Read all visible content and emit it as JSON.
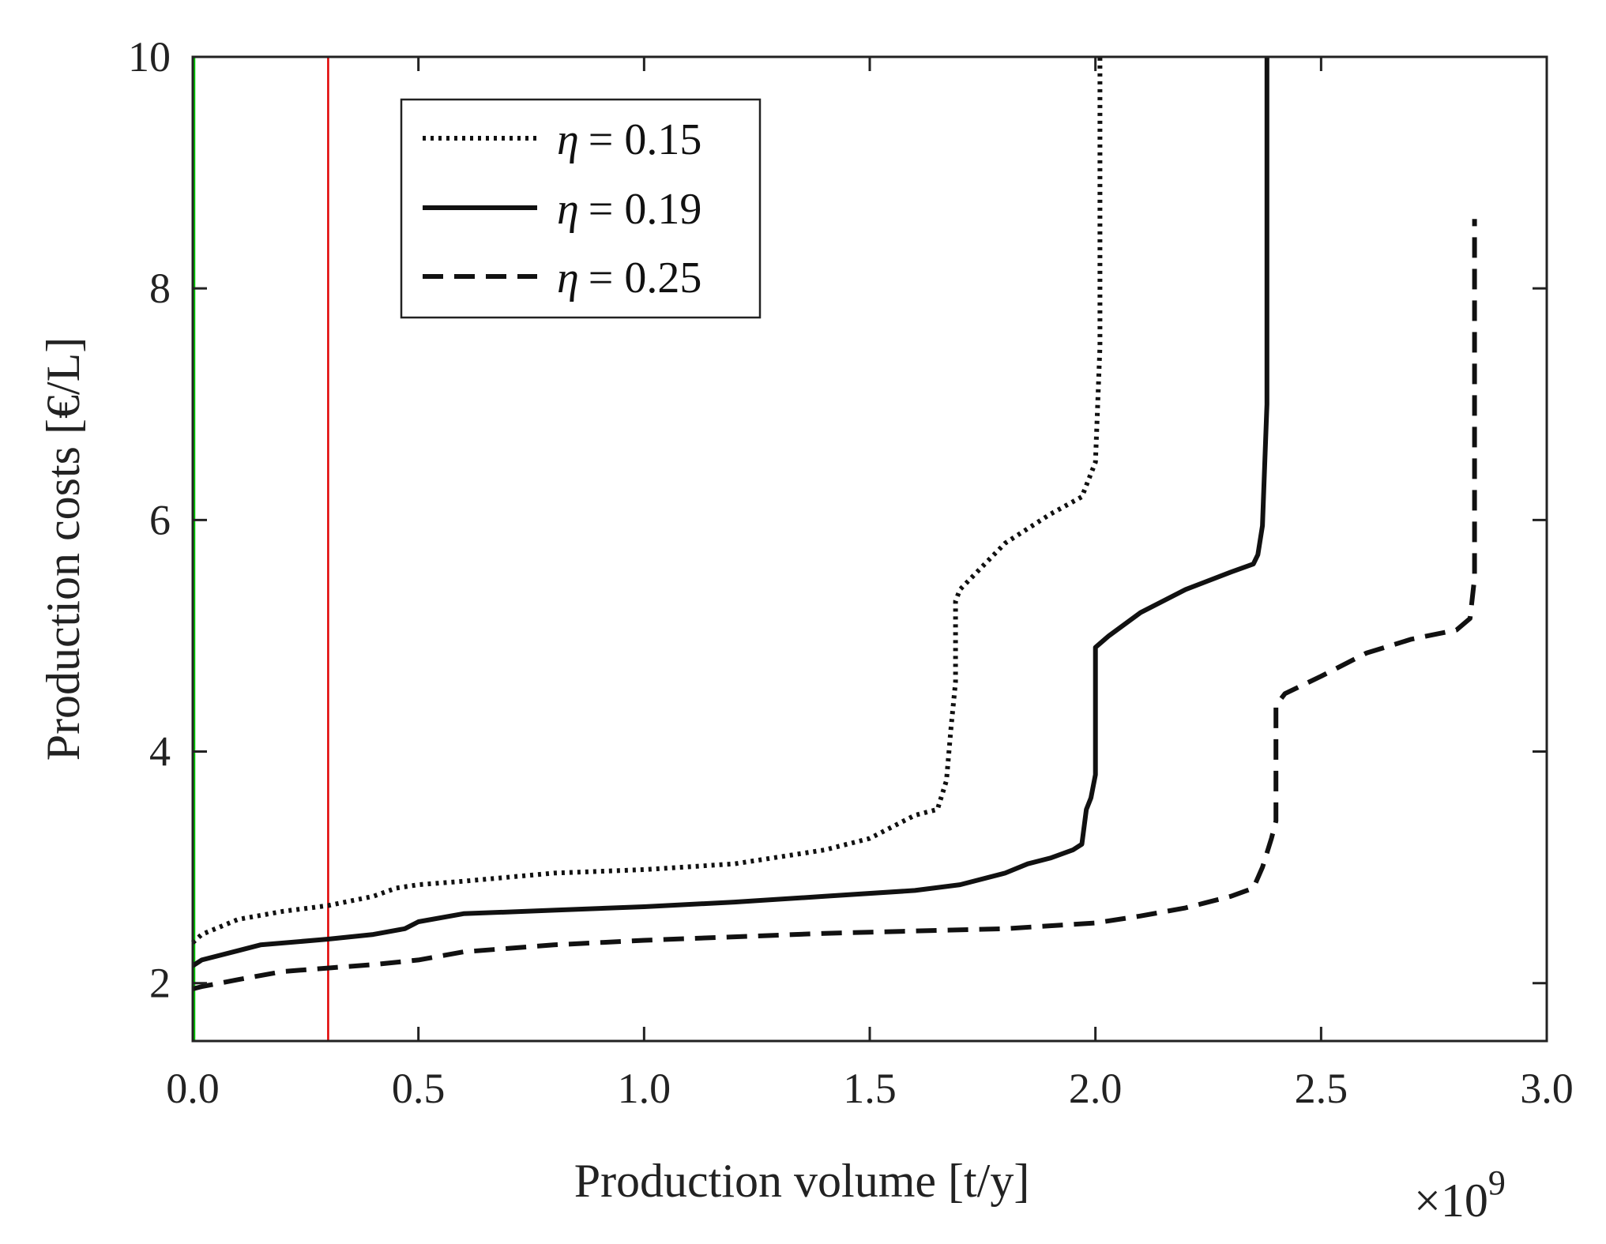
{
  "chart_data": {
    "type": "line",
    "xlabel": "Production volume [t/y]",
    "ylabel": "Production costs [€/L]",
    "x_exponent_label": "×10",
    "x_exponent_power": "9",
    "xlim": [
      0,
      3.0
    ],
    "ylim": [
      1.5,
      10
    ],
    "x_ticks": [
      {
        "value": 0.0,
        "label": "0.0"
      },
      {
        "value": 0.5,
        "label": "0.5"
      },
      {
        "value": 1.0,
        "label": "1.0"
      },
      {
        "value": 1.5,
        "label": "1.5"
      },
      {
        "value": 2.0,
        "label": "2.0"
      },
      {
        "value": 2.5,
        "label": "2.5"
      },
      {
        "value": 3.0,
        "label": "3.0"
      }
    ],
    "y_ticks": [
      {
        "value": 2,
        "label": "2"
      },
      {
        "value": 4,
        "label": "4"
      },
      {
        "value": 6,
        "label": "6"
      },
      {
        "value": 8,
        "label": "8"
      },
      {
        "value": 10,
        "label": "10"
      }
    ],
    "legend_position": "top-left",
    "vertical_lines": [
      {
        "name": "green-reference-line",
        "x": 0.0,
        "color": "#00cc00"
      },
      {
        "name": "red-reference-line",
        "x": 0.3,
        "color": "#e00000"
      }
    ],
    "series": [
      {
        "name": "η = 0.15",
        "symbol": "η",
        "value_text": "= 0.15",
        "style": "dotted",
        "color": "#111111",
        "x": [
          0.0,
          0.02,
          0.1,
          0.2,
          0.3,
          0.4,
          0.45,
          0.5,
          0.6,
          0.8,
          1.0,
          1.2,
          1.4,
          1.5,
          1.55,
          1.6,
          1.65,
          1.67,
          1.68,
          1.69,
          1.69,
          1.7,
          1.75,
          1.8,
          1.9,
          1.97,
          2.0,
          2.01,
          2.01
        ],
        "y": [
          2.35,
          2.42,
          2.55,
          2.62,
          2.67,
          2.75,
          2.82,
          2.85,
          2.88,
          2.95,
          2.98,
          3.03,
          3.15,
          3.25,
          3.35,
          3.45,
          3.5,
          3.75,
          4.2,
          4.6,
          5.3,
          5.4,
          5.6,
          5.8,
          6.05,
          6.2,
          6.5,
          7.5,
          10.0
        ]
      },
      {
        "name": "η = 0.19",
        "symbol": "η",
        "value_text": "= 0.19",
        "style": "solid",
        "color": "#111111",
        "x": [
          0.0,
          0.02,
          0.1,
          0.15,
          0.3,
          0.4,
          0.47,
          0.5,
          0.6,
          0.8,
          1.0,
          1.2,
          1.4,
          1.6,
          1.7,
          1.8,
          1.85,
          1.9,
          1.95,
          1.97,
          1.98,
          1.99,
          2.0,
          2.0,
          2.03,
          2.1,
          2.2,
          2.3,
          2.35,
          2.36,
          2.37,
          2.38,
          2.38
        ],
        "y": [
          2.15,
          2.2,
          2.28,
          2.33,
          2.38,
          2.42,
          2.47,
          2.53,
          2.6,
          2.63,
          2.66,
          2.7,
          2.75,
          2.8,
          2.85,
          2.95,
          3.03,
          3.08,
          3.15,
          3.2,
          3.5,
          3.6,
          3.8,
          4.9,
          5.0,
          5.2,
          5.4,
          5.55,
          5.62,
          5.7,
          5.95,
          7.0,
          10.0
        ]
      },
      {
        "name": "η = 0.25",
        "symbol": "η",
        "value_text": "= 0.25",
        "style": "dashed",
        "color": "#111111",
        "x": [
          0.0,
          0.02,
          0.1,
          0.2,
          0.3,
          0.4,
          0.5,
          0.6,
          0.8,
          1.0,
          1.2,
          1.4,
          1.6,
          1.8,
          2.0,
          2.1,
          2.2,
          2.3,
          2.35,
          2.37,
          2.39,
          2.4,
          2.4,
          2.42,
          2.5,
          2.6,
          2.7,
          2.8,
          2.83,
          2.84,
          2.84
        ],
        "y": [
          1.95,
          1.97,
          2.03,
          2.1,
          2.13,
          2.16,
          2.2,
          2.27,
          2.33,
          2.37,
          2.4,
          2.43,
          2.45,
          2.47,
          2.52,
          2.58,
          2.65,
          2.75,
          2.82,
          3.0,
          3.25,
          3.4,
          4.4,
          4.5,
          4.65,
          4.85,
          4.97,
          5.05,
          5.15,
          5.5,
          8.6
        ]
      }
    ]
  }
}
